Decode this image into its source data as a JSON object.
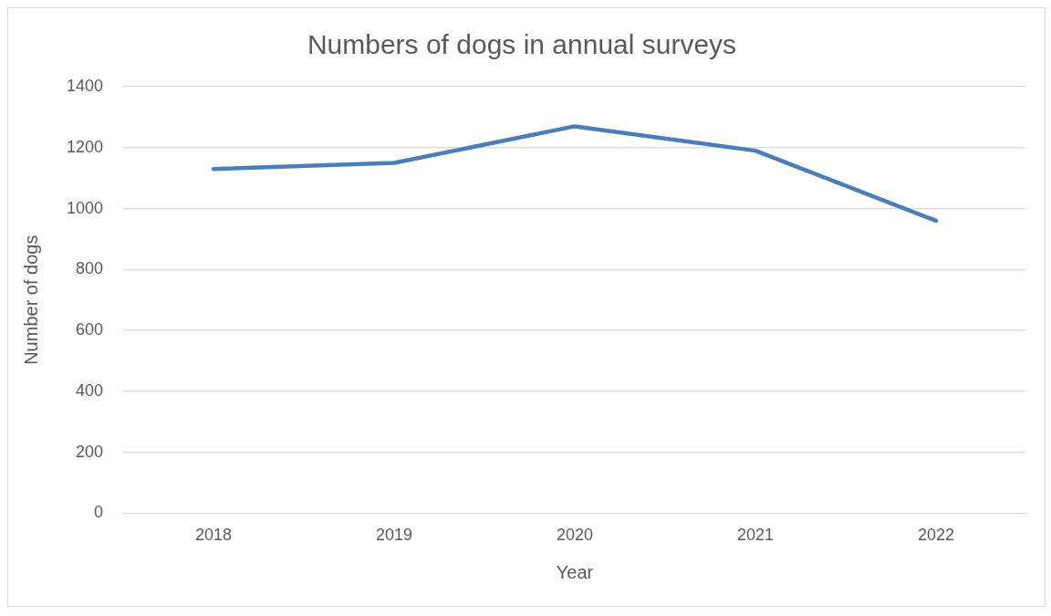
{
  "chart_data": {
    "type": "line",
    "title": "Numbers of dogs in annual surveys",
    "xlabel": "Year",
    "ylabel": "Number of dogs",
    "categories": [
      "2018",
      "2019",
      "2020",
      "2021",
      "2022"
    ],
    "series": [
      {
        "color": "#4a7ebb",
        "values": [
          1130,
          1150,
          1270,
          1190,
          960
        ]
      }
    ],
    "ylim": [
      0,
      1400
    ],
    "yticks": [
      0,
      200,
      400,
      600,
      800,
      1000,
      1200,
      1400
    ],
    "grid": "y",
    "legend": false,
    "marker": "none",
    "line_style": "solid"
  }
}
